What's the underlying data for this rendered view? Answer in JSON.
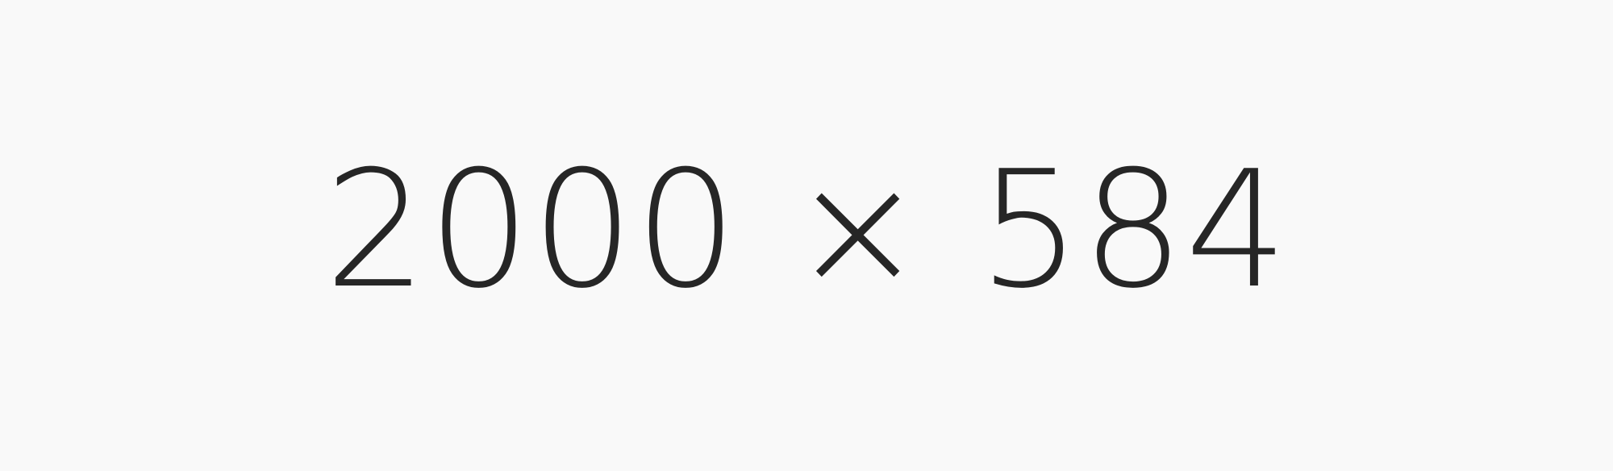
{
  "placeholder": {
    "label": "2000 × 584"
  },
  "colors": {
    "background": "#f9f9f9",
    "text": "#262626"
  }
}
